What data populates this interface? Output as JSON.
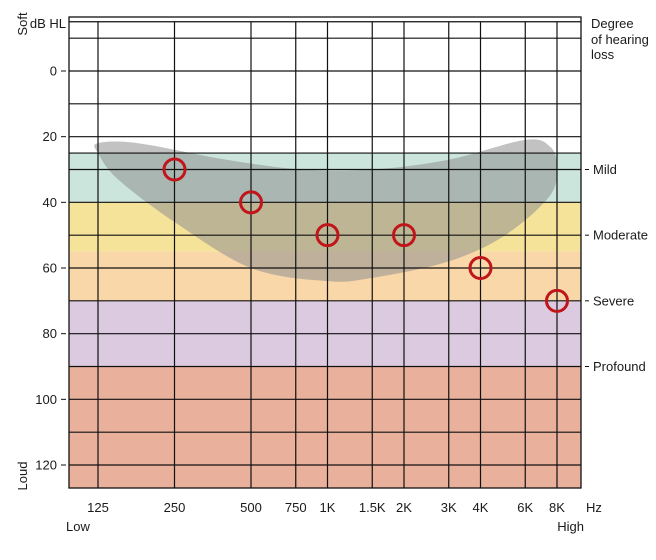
{
  "chart_data": {
    "type": "scatter",
    "title": "",
    "xlabel": "Hz",
    "ylabel": "dB HL",
    "x_scale": "log",
    "y_inverted": true,
    "ylim": [
      -15,
      127
    ],
    "yticks": [
      0,
      20,
      40,
      60,
      80,
      100,
      120
    ],
    "y_gridlines": [
      -15,
      -10,
      0,
      10,
      20,
      25,
      30,
      40,
      50,
      60,
      70,
      80,
      90,
      100,
      110,
      120
    ],
    "x_ticks": [
      {
        "value": 125,
        "label": "125"
      },
      {
        "value": 250,
        "label": "250"
      },
      {
        "value": 500,
        "label": "500"
      },
      {
        "value": 750,
        "label": "750"
      },
      {
        "value": 1000,
        "label": "1K"
      },
      {
        "value": 1500,
        "label": "1.5K"
      },
      {
        "value": 2000,
        "label": "2K"
      },
      {
        "value": 3000,
        "label": "3K"
      },
      {
        "value": 4000,
        "label": "4K"
      },
      {
        "value": 6000,
        "label": "6K"
      },
      {
        "value": 8000,
        "label": "8K"
      }
    ],
    "x_unit": "Hz",
    "x_low_label": "Low",
    "x_high_label": "High",
    "y_soft_label": "Soft",
    "y_loud_label": "Loud",
    "bands": [
      {
        "name": "mild",
        "from": 25,
        "to": 40,
        "color": "#cbe5dc"
      },
      {
        "name": "moderate-low",
        "from": 40,
        "to": 55,
        "color": "#f6e39a"
      },
      {
        "name": "moderate-high",
        "from": 55,
        "to": 70,
        "color": "#f9d7a8"
      },
      {
        "name": "severe",
        "from": 70,
        "to": 90,
        "color": "#dccbe0"
      },
      {
        "name": "profound",
        "from": 90,
        "to": 127,
        "color": "#e9b19b"
      }
    ],
    "degree_title": [
      "Degree",
      "of hearing",
      "loss"
    ],
    "degree_labels": [
      {
        "label": "Mild",
        "value": 30
      },
      {
        "label": "Moderate",
        "value": 50
      },
      {
        "label": "Severe",
        "value": 70
      },
      {
        "label": "Profound",
        "value": 90
      }
    ],
    "speech_banana": {
      "color": "#8f8f8f",
      "opacity": 0.55,
      "upper": [
        {
          "hz": 125,
          "db": 22
        },
        {
          "hz": 180,
          "db": 22
        },
        {
          "hz": 400,
          "db": 27
        },
        {
          "hz": 800,
          "db": 30
        },
        {
          "hz": 1500,
          "db": 30
        },
        {
          "hz": 3000,
          "db": 27
        },
        {
          "hz": 6000,
          "db": 21
        },
        {
          "hz": 7500,
          "db": 23
        }
      ],
      "lower": [
        {
          "hz": 8000,
          "db": 29
        },
        {
          "hz": 7500,
          "db": 38
        },
        {
          "hz": 5000,
          "db": 50
        },
        {
          "hz": 3000,
          "db": 58
        },
        {
          "hz": 1500,
          "db": 63
        },
        {
          "hz": 1000,
          "db": 64
        },
        {
          "hz": 500,
          "db": 60
        },
        {
          "hz": 250,
          "db": 46
        },
        {
          "hz": 150,
          "db": 33
        },
        {
          "hz": 125,
          "db": 25
        }
      ]
    },
    "series": [
      {
        "name": "thresholds",
        "color": "#c0161b",
        "points": [
          {
            "hz": 250,
            "db": 30
          },
          {
            "hz": 500,
            "db": 40
          },
          {
            "hz": 1000,
            "db": 50
          },
          {
            "hz": 2000,
            "db": 50
          },
          {
            "hz": 4000,
            "db": 60
          },
          {
            "hz": 8000,
            "db": 70
          }
        ]
      }
    ]
  }
}
